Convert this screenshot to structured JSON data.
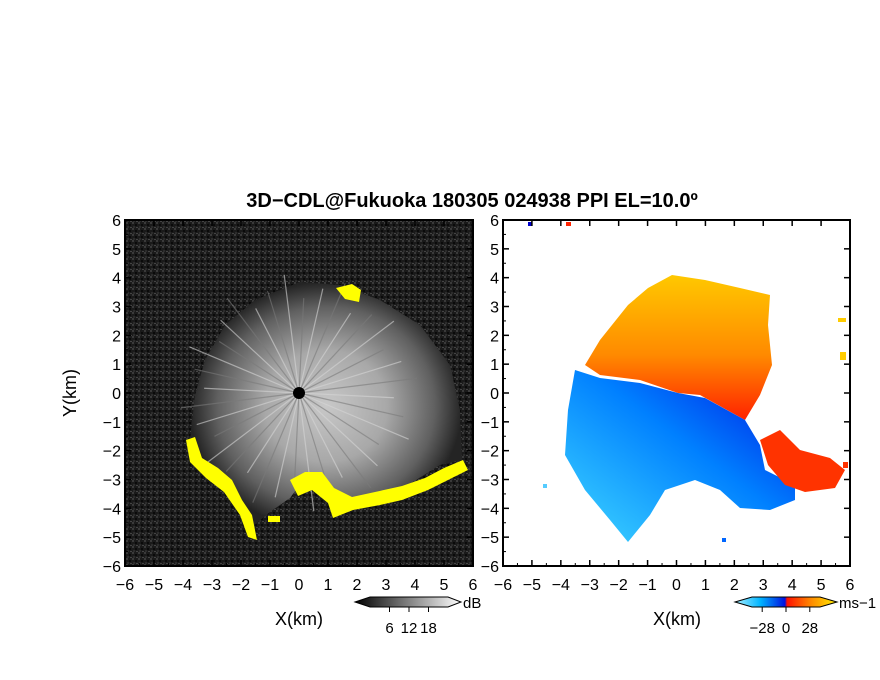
{
  "title": "3D−CDL@Fukuoka 180305 024938 PPI EL=10.0º",
  "chart_data": [
    {
      "type": "heatmap",
      "quantity": "reflectivity / SNR",
      "xlabel": "X(km)",
      "ylabel": "Y(km)",
      "xlim": [
        -6,
        6
      ],
      "ylim": [
        -6,
        6
      ],
      "xticks": [
        -6,
        -5,
        -4,
        -3,
        -2,
        -1,
        0,
        1,
        2,
        3,
        4,
        5,
        6
      ],
      "yticks": [
        -6,
        -5,
        -4,
        -3,
        -2,
        -1,
        0,
        1,
        2,
        3,
        4,
        5,
        6
      ],
      "xtick_labels": [
        "−6",
        "−5",
        "−4",
        "−3",
        "−2",
        "−1",
        "0",
        "1",
        "2",
        "3",
        "4",
        "5",
        "6"
      ],
      "ytick_labels": [
        "−6",
        "−5",
        "−4",
        "−3",
        "−2",
        "−1",
        "0",
        "1",
        "2",
        "3",
        "4",
        "5",
        "6"
      ],
      "colorbar": {
        "unit": "dB",
        "ticks": [
          6,
          12,
          18
        ],
        "tick_labels": [
          "6",
          "12",
          "18"
        ],
        "range": [
          0,
          24
        ],
        "colors": [
          "#000000",
          "#ffffff"
        ]
      },
      "highlight_color": "#ffff00",
      "background_color": "#111111"
    },
    {
      "type": "heatmap",
      "quantity": "Doppler velocity",
      "xlabel": "X(km)",
      "ylabel": "",
      "xlim": [
        -6,
        6
      ],
      "ylim": [
        -6,
        6
      ],
      "xticks": [
        -6,
        -5,
        -4,
        -3,
        -2,
        -1,
        0,
        1,
        2,
        3,
        4,
        5,
        6
      ],
      "yticks": [
        -6,
        -5,
        -4,
        -3,
        -2,
        -1,
        0,
        1,
        2,
        3,
        4,
        5,
        6
      ],
      "xtick_labels": [
        "−6",
        "−5",
        "−4",
        "−3",
        "−2",
        "−1",
        "0",
        "1",
        "2",
        "3",
        "4",
        "5",
        "6"
      ],
      "colorbar": {
        "unit": "ms−1",
        "ticks": [
          -28,
          0,
          28
        ],
        "tick_labels": [
          "−28",
          "0",
          "28"
        ],
        "range": [
          -40,
          40
        ],
        "colors": [
          "#88e8ff",
          "#00aaff",
          "#0000dd",
          "#ff0000",
          "#ff8800",
          "#ffee00"
        ]
      },
      "background_color": "#ffffff"
    }
  ]
}
